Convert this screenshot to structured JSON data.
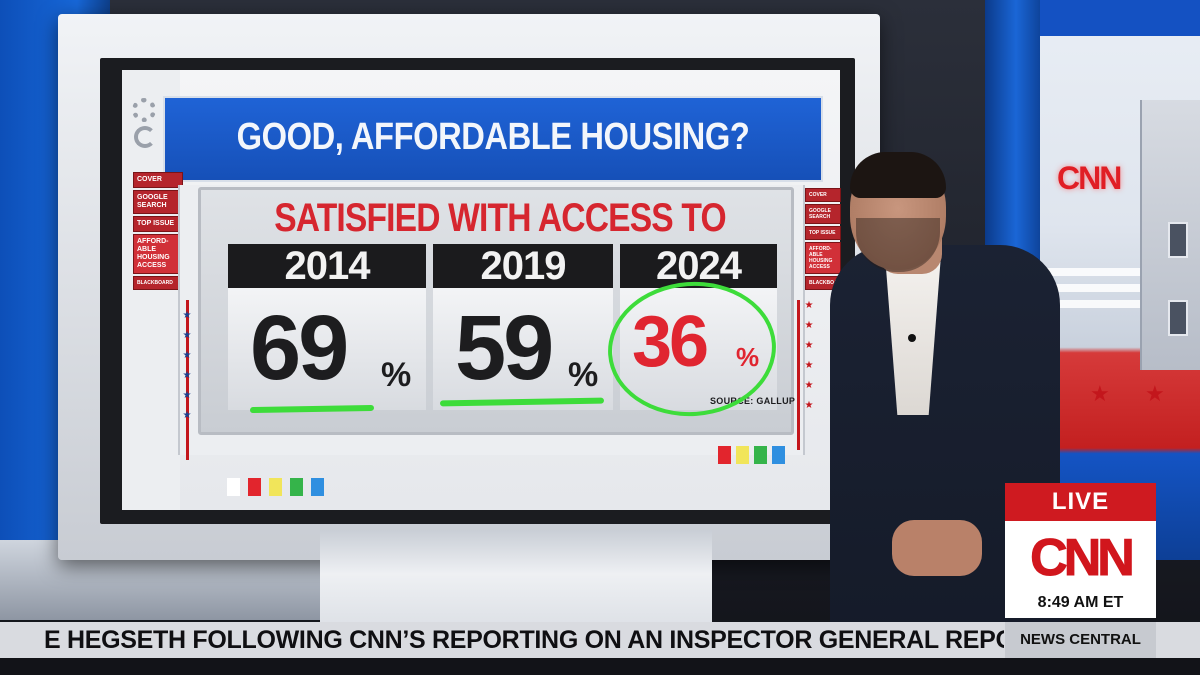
{
  "screen": {
    "title": "GOOD, AFFORDABLE HOUSING?",
    "subtitle": "SATISFIED WITH ACCESS TO IT",
    "stats": [
      {
        "year": "2014",
        "value": "69",
        "unit": "%",
        "highlight": "underline"
      },
      {
        "year": "2019",
        "value": "59",
        "unit": "%",
        "highlight": "underline"
      },
      {
        "year": "2024",
        "value": "36",
        "unit": "%",
        "highlight": "circle"
      }
    ],
    "source": "SOURCE: GALLUP",
    "nav_left": [
      {
        "label": "COVER"
      },
      {
        "label": "GOOGLE SEARCH"
      },
      {
        "label": "TOP ISSUE"
      },
      {
        "label": "AFFORD-ABLE HOUSING ACCESS"
      },
      {
        "label": "BLACKBOARD"
      }
    ],
    "nav_right": [
      {
        "label": "COVER"
      },
      {
        "label": "GOOGLE SEARCH"
      },
      {
        "label": "TOP ISSUE"
      },
      {
        "label": "AFFORD-ABLE HOUSING ACCESS"
      },
      {
        "label": "BLACKBOARD"
      }
    ],
    "swatches": [
      "#e2252d",
      "#f1e55a",
      "#35b44a",
      "#2f8fe0",
      "#ffffff"
    ],
    "colors": {
      "title_bg": "#1650b8",
      "subtitle": "#d6262f",
      "highlight_green": "#3ddc3a",
      "value_red": "#e02530"
    }
  },
  "set": {
    "logo": "CNN"
  },
  "bug": {
    "live": "LIVE",
    "logo": "CNN",
    "time": "8:49 AM ET"
  },
  "ticker": {
    "headline": "E HEGSETH FOLLOWING CNN’S REPORTING ON AN INSPECTOR GENERAL REPORT ABOUT",
    "network": "NEWS CENTRAL"
  }
}
